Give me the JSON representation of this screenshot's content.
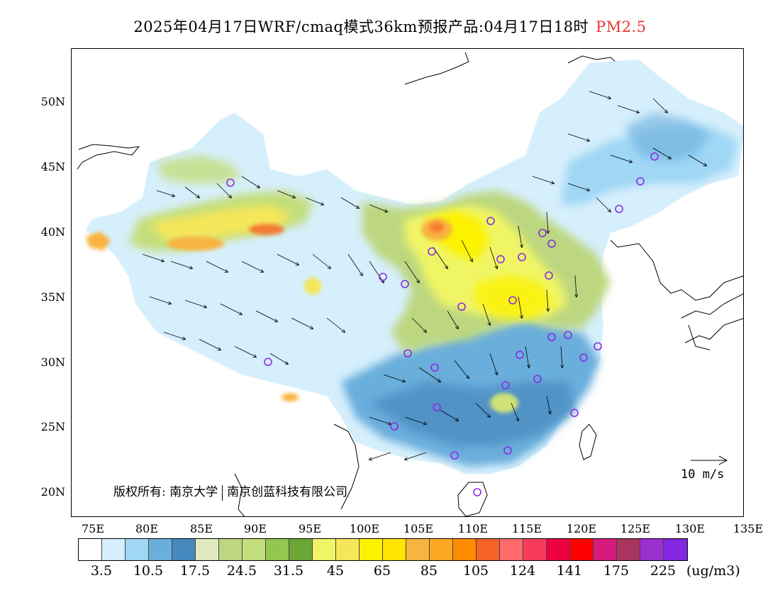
{
  "header": {
    "title_main": "2025年04月17日WRF/cmaq模式36km预报产品:04月17日18时",
    "title_pollutant": "PM2.5",
    "pollutant_color": "#e5362f"
  },
  "axes": {
    "lat_labels": [
      "50N",
      "45N",
      "40N",
      "35N",
      "30N",
      "25N",
      "20N"
    ],
    "lon_labels": [
      "75E",
      "80E",
      "85E",
      "90E",
      "95E",
      "100E",
      "105E",
      "110E",
      "115E",
      "120E",
      "125E",
      "130E",
      "135E"
    ]
  },
  "map": {
    "copyright_left": "版权所有: 南京大学",
    "copyright_right": "南京创蓝科技有限公司",
    "wind_reference_label": "10 m/s",
    "monitoring_site_color": "#8a2be2",
    "icons": [
      "wind-vector-icon",
      "monitoring-site-circle-icon",
      "reference-arrow-icon"
    ]
  },
  "legend": {
    "colors": [
      "#ffffff",
      "#d6effc",
      "#9fd7f5",
      "#6aaedc",
      "#4689bf",
      "#dfeac0",
      "#bcd77f",
      "#c3de7c",
      "#92c64e",
      "#6ca736",
      "#f0f565",
      "#f5e65a",
      "#fdf200",
      "#ffe400",
      "#f8b441",
      "#fca823",
      "#ff8c00",
      "#f46226",
      "#ff6a6a",
      "#f93b5b",
      "#ef0042",
      "#ff0000",
      "#d61a7e",
      "#a8355f",
      "#9b2fd0",
      "#8427e0"
    ],
    "labels": [
      "3.5",
      "10.5",
      "17.5",
      "24.5",
      "31.5",
      "45",
      "65",
      "85",
      "105",
      "124",
      "141",
      "175",
      "225"
    ],
    "unit": "(ug/m3)"
  }
}
